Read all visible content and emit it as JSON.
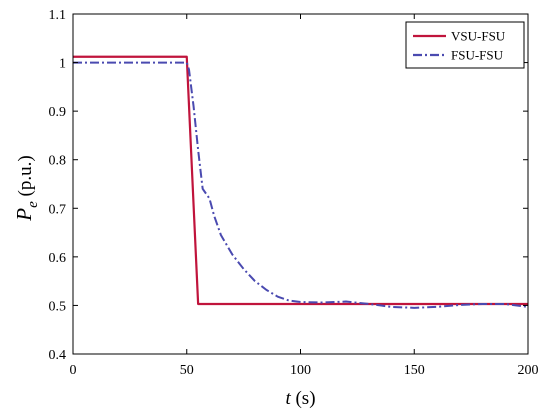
{
  "chart_data": {
    "type": "line",
    "xlabel": {
      "symbol": "t",
      "unit": "(s)"
    },
    "ylabel": {
      "symbol": "P",
      "subscript": "e",
      "unit": "(p.u.)"
    },
    "xlim": [
      0,
      200
    ],
    "ylim": [
      0.4,
      1.1
    ],
    "x_ticks": [
      0,
      50,
      100,
      150,
      200
    ],
    "y_ticks": [
      0.4,
      0.5,
      0.6,
      0.7,
      0.8,
      0.9,
      1,
      1.1
    ],
    "x_tick_labels": [
      "0",
      "50",
      "100",
      "150",
      "200"
    ],
    "y_tick_labels": [
      "0.4",
      "0.5",
      "0.6",
      "0.7",
      "0.8",
      "0.9",
      "1",
      "1.1"
    ],
    "grid": false,
    "legend_position": "top-right",
    "series": [
      {
        "name": "VSU-FSU",
        "color": "#c0143c",
        "style": "solid",
        "x": [
          0,
          50,
          55,
          100,
          150,
          200
        ],
        "y": [
          1.012,
          1.012,
          0.503,
          0.503,
          0.503,
          0.503
        ]
      },
      {
        "name": "FSU-FSU",
        "color": "#4a4ab0",
        "style": "dashdot",
        "x": [
          0,
          50,
          51,
          53,
          55,
          57,
          60,
          62,
          65,
          70,
          75,
          80,
          85,
          90,
          95,
          100,
          110,
          120,
          130,
          140,
          150,
          160,
          170,
          180,
          190,
          200
        ],
        "y": [
          1.0,
          1.0,
          0.985,
          0.91,
          0.82,
          0.74,
          0.72,
          0.685,
          0.645,
          0.605,
          0.575,
          0.55,
          0.532,
          0.518,
          0.51,
          0.507,
          0.506,
          0.508,
          0.503,
          0.497,
          0.495,
          0.497,
          0.501,
          0.503,
          0.503,
          0.497
        ]
      }
    ]
  }
}
